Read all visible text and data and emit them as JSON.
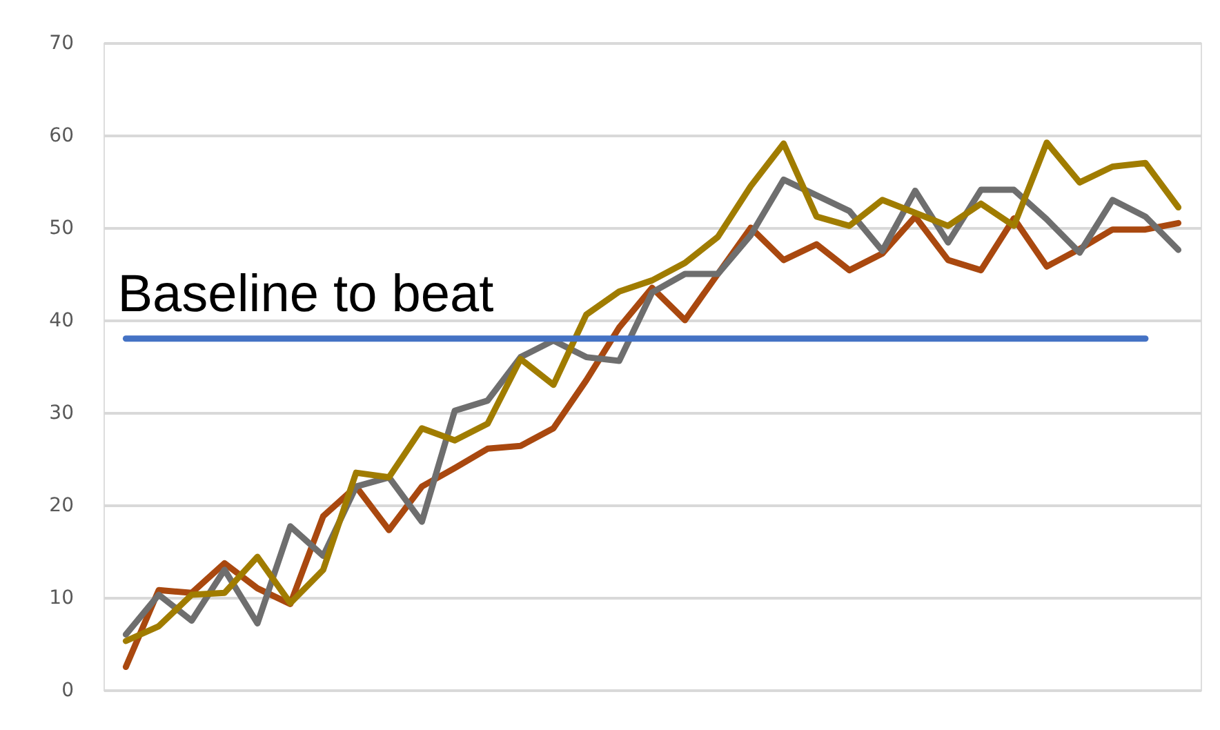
{
  "chart_data": {
    "type": "line",
    "categories": [
      null,
      null,
      null,
      null,
      null,
      null,
      null,
      null,
      null,
      null,
      null,
      null,
      null,
      null,
      null,
      null,
      null,
      null,
      null,
      null,
      null,
      null,
      null,
      null,
      null,
      null,
      null,
      null,
      null,
      null,
      null,
      null,
      null
    ],
    "series": [
      {
        "color": "#a9480f",
        "values": [
          2.5,
          10.8,
          10.5,
          13.7,
          11,
          9.3,
          18.8,
          22,
          17.3,
          22,
          24,
          26.1,
          26.4,
          28.3,
          33.5,
          39.2,
          43.5,
          40,
          45,
          50,
          46.5,
          48.2,
          45.4,
          47.2,
          51.2,
          46.5,
          45.4,
          51,
          45.8,
          47.7,
          49.8,
          49.8,
          50.5
        ]
      },
      {
        "color": "#6e6e6e",
        "values": [
          6,
          10.3,
          7.5,
          13,
          7.2,
          17.7,
          14.5,
          22,
          23,
          18.2,
          30.2,
          31.3,
          36,
          37.8,
          36,
          35.6,
          43,
          45,
          45,
          49.2,
          55.2,
          53.5,
          51.8,
          47.5,
          54,
          48.4,
          54.1,
          54.1,
          50.9,
          47.3,
          53,
          51.2,
          47.6
        ]
      },
      {
        "color": "#a07c00",
        "values": [
          5.3,
          6.9,
          10.3,
          10.5,
          14.4,
          9.4,
          13,
          23.5,
          23,
          28.3,
          27,
          28.8,
          35.8,
          33,
          40.6,
          43.1,
          44.3,
          46.2,
          49,
          54.5,
          59.1,
          51.2,
          50.2,
          53,
          51.6,
          50.2,
          52.6,
          50.2,
          59.2,
          54.9,
          56.6,
          57,
          52.2
        ]
      },
      {
        "name": "Baseline to beat",
        "color": "#4472c4",
        "values": [
          38,
          38,
          38,
          38,
          38,
          38,
          38,
          38,
          38,
          38,
          38,
          38,
          38,
          38,
          38,
          38,
          38,
          38,
          38,
          38,
          38,
          38,
          38,
          38,
          38,
          38,
          38,
          38,
          38,
          38,
          38,
          38,
          null
        ]
      }
    ],
    "ylim": [
      0,
      70
    ],
    "yticks": [
      0,
      10,
      20,
      30,
      40,
      50,
      60,
      70
    ],
    "grid": "y",
    "tick_labels": "y",
    "marker": "none",
    "line_style": "solid"
  }
}
